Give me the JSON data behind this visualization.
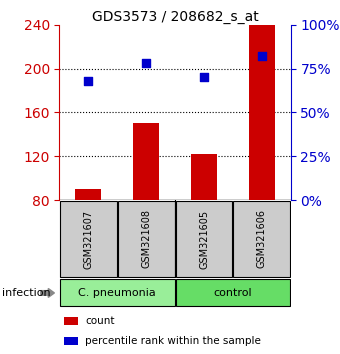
{
  "title": "GDS3573 / 208682_s_at",
  "samples": [
    "GSM321607",
    "GSM321608",
    "GSM321605",
    "GSM321606"
  ],
  "counts": [
    90,
    150,
    122,
    240
  ],
  "percentiles": [
    68,
    78,
    70,
    82
  ],
  "ylim_left": [
    80,
    240
  ],
  "yticks_left": [
    80,
    120,
    160,
    200,
    240
  ],
  "ylim_right": [
    0,
    100
  ],
  "yticks_right": [
    0,
    25,
    50,
    75,
    100
  ],
  "bar_color": "#cc0000",
  "dot_color": "#0000cc",
  "bar_baseline": 80,
  "groups": [
    {
      "label": "C. pneumonia",
      "samples": [
        0,
        1
      ],
      "color": "#99ee99"
    },
    {
      "label": "control",
      "samples": [
        2,
        3
      ],
      "color": "#66dd66"
    }
  ],
  "group_label": "infection",
  "legend": [
    {
      "color": "#cc0000",
      "label": "count"
    },
    {
      "color": "#0000cc",
      "label": "percentile rank within the sample"
    }
  ],
  "sample_box_color": "#cccccc",
  "left_tick_color": "#cc0000",
  "right_tick_color": "#0000cc"
}
